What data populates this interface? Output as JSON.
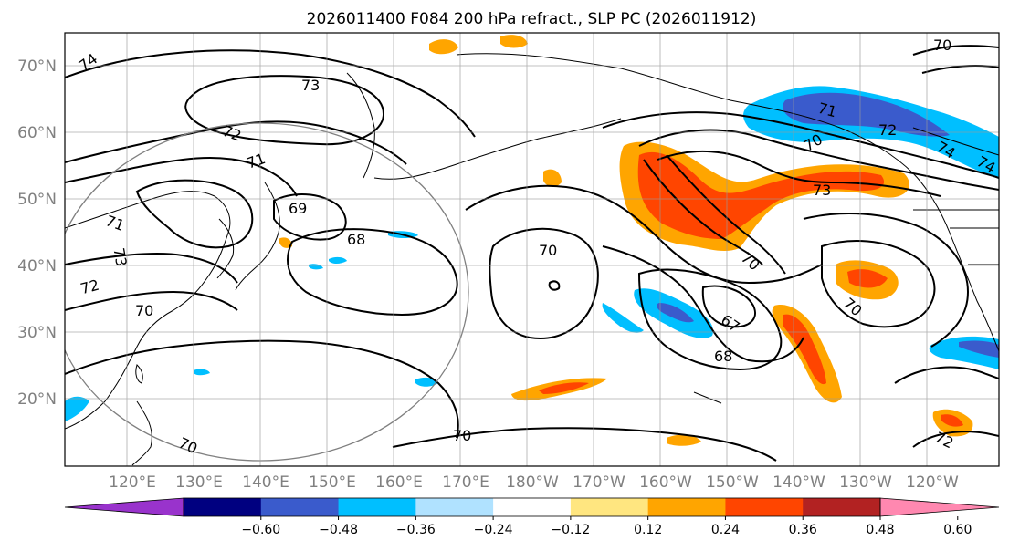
{
  "title": "2026011400 F084 200 hPa refract., SLP PC (2026011912)",
  "lat_labels": [
    "70°N",
    "60°N",
    "50°N",
    "40°N",
    "30°N",
    "20°N"
  ],
  "lon_labels": [
    "120°E",
    "130°E",
    "140°E",
    "150°E",
    "160°E",
    "170°E",
    "180°W",
    "170°W",
    "160°W",
    "150°W",
    "140°W",
    "130°W",
    "120°W"
  ],
  "colorbar": {
    "ticks": [
      "−0.60",
      "−0.48",
      "−0.36",
      "−0.24",
      "−0.12",
      "0.12",
      "0.24",
      "0.36",
      "0.48",
      "0.60"
    ],
    "colors": [
      "#9933cc",
      "#000080",
      "#3a5bcc",
      "#00bfff",
      "#b0e2ff",
      "#ffffff",
      "#ffe680",
      "#ffa500",
      "#ff4500",
      "#b22222",
      "#ff88b0"
    ]
  },
  "contour_labels": [
    "74",
    "73",
    "72",
    "71",
    "69",
    "68",
    "71",
    "73",
    "72",
    "70",
    "70",
    "68",
    "70",
    "70",
    "70",
    "67",
    "68",
    "70",
    "71",
    "72",
    "74",
    "74",
    "73",
    "70",
    "72",
    "70"
  ]
}
